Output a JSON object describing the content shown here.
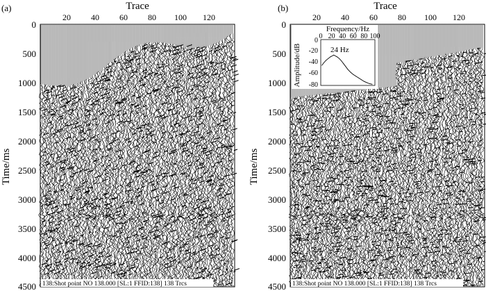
{
  "panels": [
    {
      "id": "a",
      "panel_label": "(a)",
      "x_axis_title": "Trace",
      "y_axis_title": "Time/ms",
      "x_ticks": [
        "20",
        "40",
        "60",
        "80",
        "100",
        "120"
      ],
      "y_ticks": [
        "0",
        "500",
        "1000",
        "1500",
        "2000",
        "2500",
        "3000",
        "3500",
        "4000",
        "4500"
      ],
      "footer_text": "138:Shot point NO 138.000 [SL:1 FFID:138] 138 Trcs"
    },
    {
      "id": "b",
      "panel_label": "(b)",
      "x_axis_title": "Trace",
      "y_axis_title": "Time/ms",
      "x_ticks": [
        "20",
        "40",
        "60",
        "80",
        "100",
        "120"
      ],
      "y_ticks": [
        "0",
        "500",
        "1000",
        "1500",
        "2000",
        "2500",
        "3000",
        "3500",
        "4000",
        "4500"
      ],
      "footer_text": "138:Shot point NO 138.000 [SL:1 FFID:138] 138 Trcs",
      "inset": {
        "x_axis_title": "Frequency/Hz",
        "y_axis_title": "Amplitude/dB",
        "x_ticks": [
          "0",
          "20",
          "40",
          "60",
          "80",
          "100"
        ],
        "y_ticks": [
          "0",
          "-20",
          "-40",
          "-60",
          "-80"
        ],
        "peak_label": "24 Hz"
      }
    }
  ],
  "chart_data": {
    "type": "line",
    "title": "",
    "xlabel": "Frequency/Hz",
    "ylabel": "Amplitude/dB",
    "xlim": [
      0,
      100
    ],
    "ylim": [
      -80,
      0
    ],
    "x": [
      2,
      6,
      10,
      14,
      18,
      22,
      24,
      26,
      30,
      34,
      38,
      42,
      46,
      50,
      55,
      60,
      65,
      70,
      75,
      80,
      85,
      90,
      95
    ],
    "series": [
      {
        "values": [
          -45,
          -40,
          -36,
          -33,
          -30,
          -28,
          -27,
          -28,
          -30,
          -33,
          -37,
          -42,
          -47,
          -52,
          -57,
          -61,
          -64,
          -67,
          -70,
          -73,
          -75,
          -77,
          -78
        ]
      }
    ]
  },
  "colors": {
    "ink": "#000000",
    "paper": "#ffffff"
  }
}
